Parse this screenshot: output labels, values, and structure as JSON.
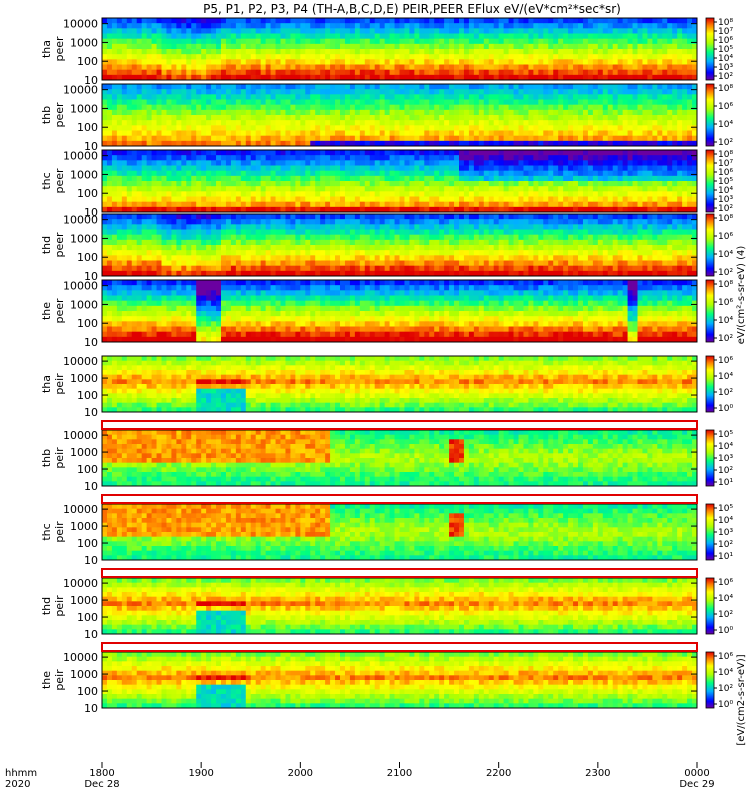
{
  "title": "P5, P1, P2, P3, P4 (TH-A,B,C,D,E) PEIR,PEER EFlux eV/(eV*cm²*sec*sr)",
  "time_axis": {
    "row_label_1": "hhmm",
    "row_label_2": "2020",
    "ticks": [
      {
        "time": "1800",
        "date": "Dec 28"
      },
      {
        "time": "1900",
        "date": ""
      },
      {
        "time": "2000",
        "date": ""
      },
      {
        "time": "2100",
        "date": ""
      },
      {
        "time": "2200",
        "date": ""
      },
      {
        "time": "2300",
        "date": ""
      },
      {
        "time": "0000",
        "date": "Dec 29"
      }
    ]
  },
  "colorbar_label_upper": "eV/(cm²-s-sr-eV) (4)",
  "colorbar_label_lower": "[eV/(cm2-s-sr-eV)]",
  "chart_data": {
    "type": "heatmap",
    "x_range": [
      "2020-12-28 18:00",
      "2020-12-29 00:00"
    ],
    "yscale": "log",
    "ylim": [
      10,
      20000
    ],
    "y_ticks": [
      "10",
      "100",
      "1000",
      "10000"
    ],
    "panels": [
      {
        "label1": "tha",
        "label2": "peer",
        "cbar_ticks": [
          "10²",
          "10³",
          "10⁴",
          "10⁵",
          "10⁶",
          "10⁷",
          "10⁸"
        ],
        "profile": "peer_a"
      },
      {
        "label1": "thb",
        "label2": "peer",
        "cbar_ticks": [
          "10²",
          "10⁴",
          "10⁶",
          "10⁸"
        ],
        "profile": "peer_b"
      },
      {
        "label1": "thc",
        "label2": "peer",
        "cbar_ticks": [
          "10²",
          "10³",
          "10⁴",
          "10⁵",
          "10⁶",
          "10⁷",
          "10⁸"
        ],
        "profile": "peer_c"
      },
      {
        "label1": "thd",
        "label2": "peer",
        "cbar_ticks": [
          "10²",
          "10⁴",
          "10⁶",
          "10⁸"
        ],
        "profile": "peer_a"
      },
      {
        "label1": "the",
        "label2": "peer",
        "cbar_ticks": [
          "10²",
          "10⁴",
          "10⁶",
          "10⁸"
        ],
        "profile": "peer_e"
      },
      {
        "label1": "tha",
        "label2": "peir",
        "cbar_ticks": [
          "10⁰",
          "10²",
          "10⁴",
          "10⁶"
        ],
        "profile": "peir_a"
      },
      {
        "label1": "thb",
        "label2": "peir",
        "cbar_ticks": [
          "10¹",
          "10²",
          "10³",
          "10⁴",
          "10⁵"
        ],
        "profile": "peir_b"
      },
      {
        "label1": "thc",
        "label2": "peir",
        "cbar_ticks": [
          "10¹",
          "10²",
          "10³",
          "10⁴",
          "10⁵"
        ],
        "profile": "peir_b"
      },
      {
        "label1": "thd",
        "label2": "peir",
        "cbar_ticks": [
          "10⁰",
          "10²",
          "10⁴",
          "10⁶"
        ],
        "profile": "peir_a"
      },
      {
        "label1": "the",
        "label2": "peir",
        "cbar_ticks": [
          "10⁰",
          "10²",
          "10⁴",
          "10⁶"
        ],
        "profile": "peir_a"
      }
    ]
  }
}
